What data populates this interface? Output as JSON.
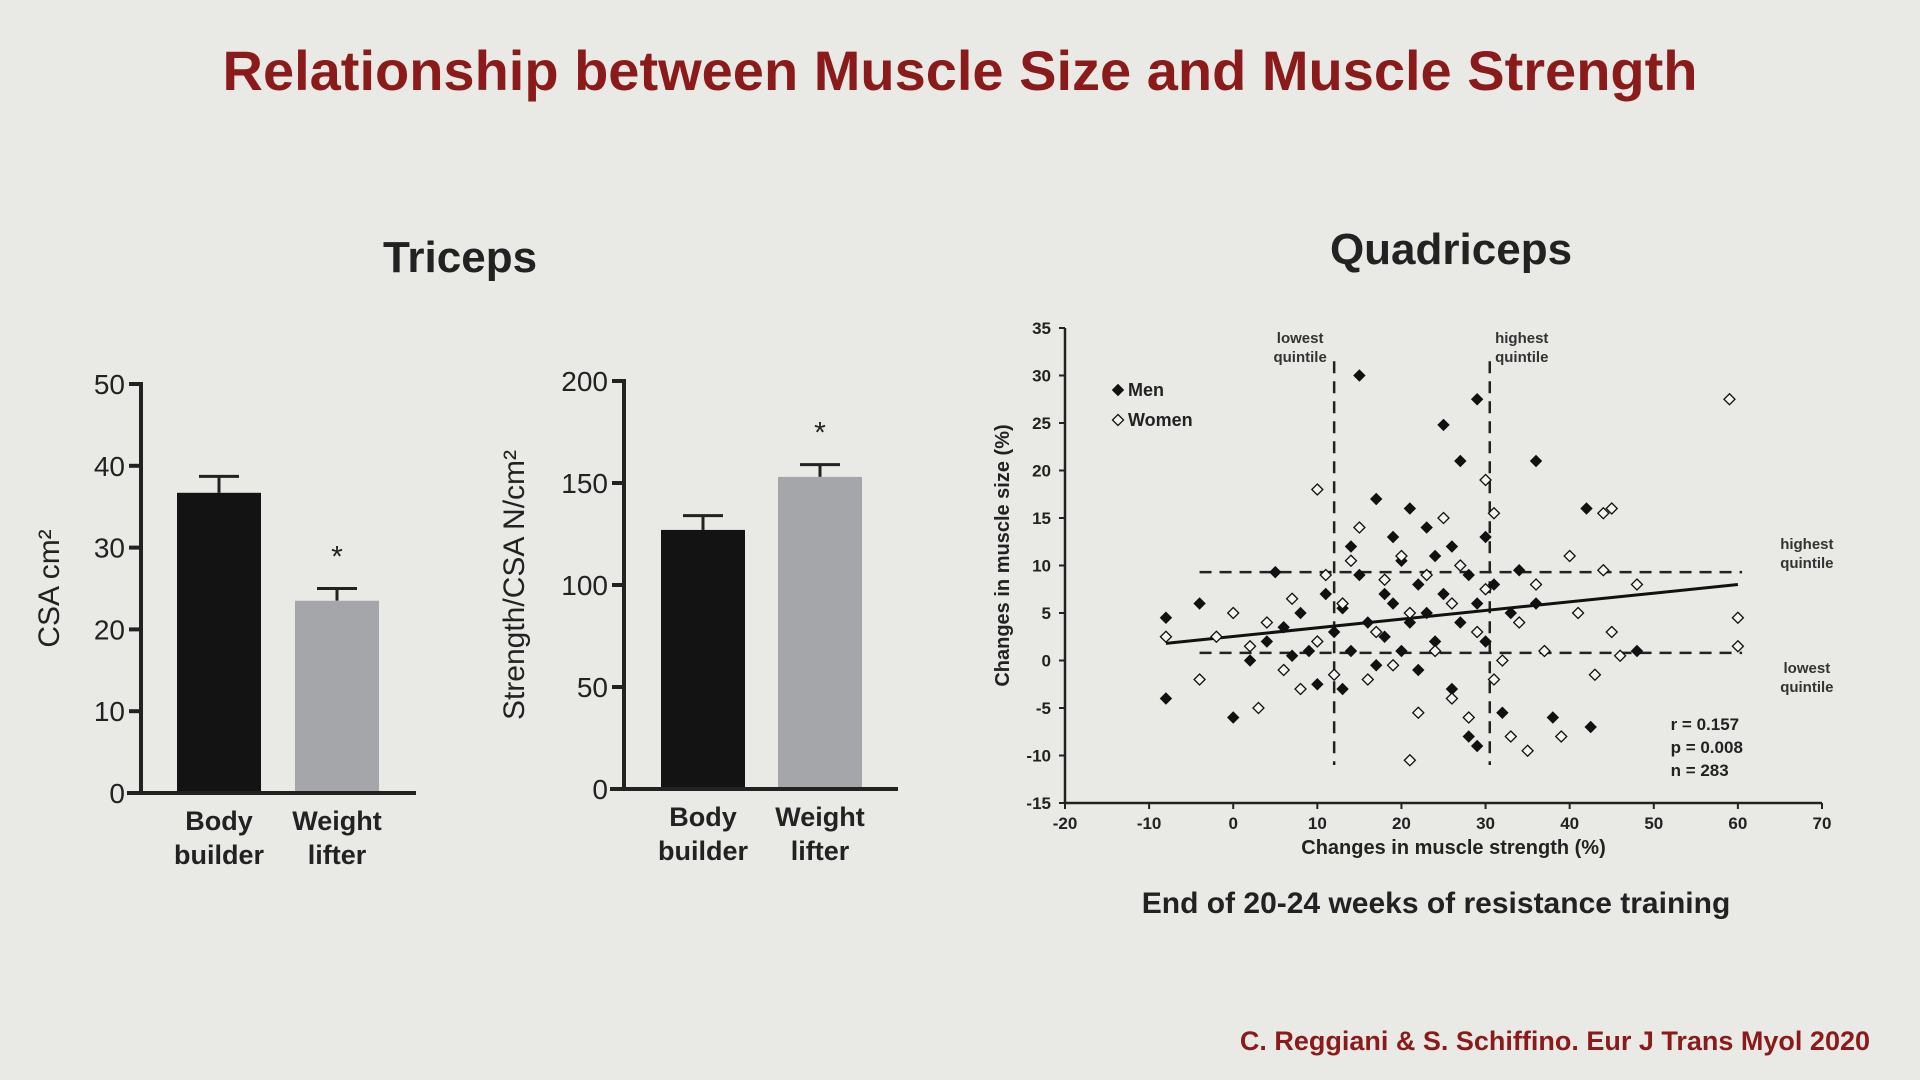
{
  "title": "Relationship between Muscle Size and Muscle Strength",
  "source": "C. Reggiani & S. Schiffino. Eur J Trans Myol  2020",
  "groups": [
    {
      "title": "Triceps"
    },
    {
      "title": "Quadriceps",
      "caption": "End of 20-24 weeks of resistance training"
    }
  ],
  "chart_data": [
    {
      "type": "bar",
      "ylabel": "CSA cm²",
      "categories": [
        "Body builder",
        "Weight lifter"
      ],
      "values": [
        36.7,
        23.5
      ],
      "errors": [
        2,
        1.5
      ],
      "colors": [
        "#131313",
        "#a5a6a9"
      ],
      "significance": [
        null,
        "*"
      ],
      "ylim": [
        0,
        50
      ],
      "yticks": [
        0,
        10,
        20,
        30,
        40,
        50
      ]
    },
    {
      "type": "bar",
      "ylabel": "Strength/CSA N/cm²",
      "categories": [
        "Body builder",
        "Weight lifter"
      ],
      "values": [
        127,
        153
      ],
      "errors": [
        7,
        6
      ],
      "colors": [
        "#131313",
        "#a5a6a9"
      ],
      "significance": [
        null,
        "*"
      ],
      "ylim": [
        0,
        200
      ],
      "yticks": [
        0,
        50,
        100,
        150,
        200
      ]
    },
    {
      "type": "scatter",
      "xlabel": "Changes in muscle strength (%)",
      "ylabel": "Changes in muscle size (%)",
      "xlim": [
        -20,
        70
      ],
      "xticks": [
        -20,
        -10,
        0,
        10,
        20,
        30,
        40,
        50,
        60,
        70
      ],
      "ylim": [
        -15,
        35
      ],
      "yticks": [
        -15,
        -10,
        -5,
        0,
        5,
        10,
        15,
        20,
        25,
        30,
        35
      ],
      "series": [
        {
          "name": "Men",
          "marker": "filled",
          "color": "#111111",
          "x": [
            -8,
            -8,
            -4,
            0,
            5,
            2,
            4,
            6,
            7,
            8,
            9,
            10,
            11,
            12,
            13,
            13,
            14,
            14,
            15,
            15,
            16,
            17,
            17,
            18,
            18,
            19,
            19,
            20,
            20,
            21,
            21,
            22,
            22,
            23,
            23,
            24,
            24,
            25,
            25,
            26,
            26,
            27,
            27,
            28,
            28,
            29,
            29,
            29,
            30,
            30,
            31,
            32,
            33,
            34,
            36,
            36,
            38,
            42,
            42.5,
            48
          ],
          "y": [
            -4,
            4.5,
            6,
            -6,
            9.3,
            0,
            2,
            3.5,
            0.5,
            5,
            1,
            -2.5,
            7,
            3,
            -3,
            5.5,
            12,
            1,
            30,
            9,
            4,
            17,
            -0.5,
            7,
            2.5,
            13,
            6,
            10.5,
            1,
            16,
            4,
            8,
            -1,
            14,
            5,
            11,
            2,
            24.8,
            7,
            -3,
            12,
            21,
            4,
            9,
            -8,
            27.5,
            -9,
            6,
            13,
            2,
            8,
            -5.5,
            5,
            9.5,
            21,
            6,
            -6,
            16,
            -7,
            1
          ]
        },
        {
          "name": "Women",
          "marker": "open",
          "color": "#111111",
          "x": [
            -8,
            -4,
            -2,
            0,
            2,
            3,
            4,
            6,
            7,
            8,
            10,
            10,
            11,
            12,
            13,
            14,
            15,
            16,
            17,
            18,
            19,
            20,
            21,
            21,
            22,
            23,
            24,
            25,
            26,
            26,
            27,
            28,
            29,
            30,
            30,
            31,
            31,
            32,
            33,
            34,
            35,
            36,
            37,
            39,
            40,
            41,
            43,
            44,
            44,
            45,
            45,
            46,
            48,
            59,
            60,
            60
          ],
          "y": [
            2.5,
            -2,
            2.5,
            5,
            1.5,
            -5,
            4,
            -1,
            6.5,
            -3,
            18,
            2,
            9,
            -1.5,
            6,
            10.5,
            14,
            -2,
            3,
            8.5,
            -0.5,
            11,
            -10.5,
            5,
            -5.5,
            9,
            1,
            15,
            -4,
            6,
            10,
            -6,
            3,
            19,
            7.5,
            15.5,
            -2,
            0,
            -8,
            4,
            -9.5,
            8,
            1,
            -8,
            11,
            5,
            -1.5,
            9.5,
            15.5,
            16,
            3,
            0.5,
            8,
            27.5,
            4.5,
            1.5
          ]
        }
      ],
      "fit_line": {
        "x": [
          -8,
          60
        ],
        "y": [
          1.8,
          8
        ]
      },
      "vlines": [
        {
          "value": 12,
          "label": "lowest quintile"
        },
        {
          "value": 30.5,
          "label": "highest quintile"
        }
      ],
      "hlines": [
        {
          "value": 9.3,
          "label": "highest quintile"
        },
        {
          "value": 0.8,
          "label": "lowest quintile"
        }
      ],
      "stats": [
        "r = 0.157",
        "p = 0.008",
        "n = 283"
      ]
    }
  ]
}
